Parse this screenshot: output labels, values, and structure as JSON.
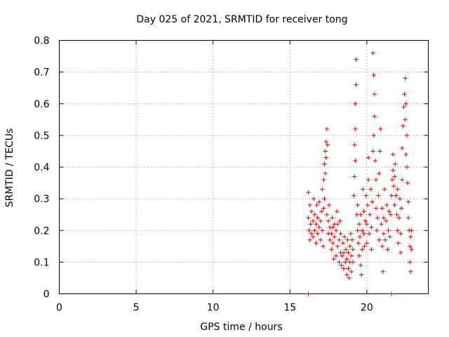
{
  "chart_data": {
    "type": "scatter",
    "title": "Day 025 of 2021, SRMTID for receiver tong",
    "xlabel": "GPS time / hours",
    "ylabel": "SRMTID / TECUs",
    "xlim": [
      0,
      24
    ],
    "ylim": [
      0,
      0.8
    ],
    "xticks": [
      "0",
      "5",
      "10",
      "15",
      "20"
    ],
    "yticks": [
      "0",
      "0.1",
      "0.2",
      "0.3",
      "0.4",
      "0.5",
      "0.6",
      "0.7",
      "0.8"
    ],
    "grid": true,
    "marker": "+",
    "color": "#e00000",
    "series": [
      {
        "name": "SRMTID",
        "points": [
          [
            16.2,
            0.0
          ],
          [
            21.6,
            0.0
          ],
          [
            16.2,
            0.32
          ],
          [
            16.2,
            0.24
          ],
          [
            16.25,
            0.2
          ],
          [
            16.3,
            0.17
          ],
          [
            16.3,
            0.28
          ],
          [
            16.35,
            0.22
          ],
          [
            16.4,
            0.19
          ],
          [
            16.4,
            0.26
          ],
          [
            16.5,
            0.18
          ],
          [
            16.5,
            0.23
          ],
          [
            16.55,
            0.3
          ],
          [
            16.6,
            0.2
          ],
          [
            16.6,
            0.25
          ],
          [
            16.7,
            0.16
          ],
          [
            16.7,
            0.22
          ],
          [
            16.75,
            0.28
          ],
          [
            16.8,
            0.19
          ],
          [
            16.8,
            0.24
          ],
          [
            16.9,
            0.21
          ],
          [
            16.9,
            0.29
          ],
          [
            17.0,
            0.17
          ],
          [
            17.0,
            0.23
          ],
          [
            17.05,
            0.26
          ],
          [
            17.1,
            0.2
          ],
          [
            17.1,
            0.33
          ],
          [
            17.15,
            0.15
          ],
          [
            17.2,
            0.36
          ],
          [
            17.25,
            0.41
          ],
          [
            17.3,
            0.45
          ],
          [
            17.35,
            0.48
          ],
          [
            17.4,
            0.52
          ],
          [
            17.35,
            0.43
          ],
          [
            17.3,
            0.38
          ],
          [
            17.45,
            0.47
          ],
          [
            17.25,
            0.3
          ],
          [
            17.2,
            0.27
          ],
          [
            17.4,
            0.25
          ],
          [
            17.5,
            0.19
          ],
          [
            17.5,
            0.23
          ],
          [
            17.55,
            0.28
          ],
          [
            17.6,
            0.17
          ],
          [
            17.6,
            0.21
          ],
          [
            17.7,
            0.14
          ],
          [
            17.7,
            0.19
          ],
          [
            17.75,
            0.24
          ],
          [
            17.8,
            0.16
          ],
          [
            17.8,
            0.21
          ],
          [
            17.85,
            0.11
          ],
          [
            17.9,
            0.18
          ],
          [
            17.9,
            0.22
          ],
          [
            18.0,
            0.12
          ],
          [
            18.0,
            0.2
          ],
          [
            18.05,
            0.26
          ],
          [
            18.1,
            0.15
          ],
          [
            18.1,
            0.22
          ],
          [
            18.2,
            0.1
          ],
          [
            18.2,
            0.17
          ],
          [
            18.25,
            0.23
          ],
          [
            18.3,
            0.13
          ],
          [
            18.3,
            0.19
          ],
          [
            18.35,
            0.09
          ],
          [
            18.4,
            0.12
          ],
          [
            18.45,
            0.16
          ],
          [
            18.5,
            0.08
          ],
          [
            18.5,
            0.13
          ],
          [
            18.55,
            0.18
          ],
          [
            18.6,
            0.1
          ],
          [
            18.65,
            0.14
          ],
          [
            18.7,
            0.06
          ],
          [
            18.7,
            0.11
          ],
          [
            18.75,
            0.17
          ],
          [
            18.8,
            0.08
          ],
          [
            18.8,
            0.13
          ],
          [
            18.85,
            0.05
          ],
          [
            18.9,
            0.1
          ],
          [
            18.9,
            0.15
          ],
          [
            18.95,
            0.19
          ],
          [
            19.0,
            0.07
          ],
          [
            19.0,
            0.12
          ],
          [
            19.05,
            0.17
          ],
          [
            19.1,
            0.1
          ],
          [
            19.1,
            0.14
          ],
          [
            19.15,
            0.31
          ],
          [
            19.2,
            0.37
          ],
          [
            19.2,
            0.47
          ],
          [
            19.25,
            0.52
          ],
          [
            19.25,
            0.6
          ],
          [
            19.3,
            0.66
          ],
          [
            19.3,
            0.74
          ],
          [
            19.25,
            0.42
          ],
          [
            19.35,
            0.25
          ],
          [
            19.4,
            0.2
          ],
          [
            19.4,
            0.28
          ],
          [
            19.45,
            0.16
          ],
          [
            19.5,
            0.22
          ],
          [
            19.5,
            0.12
          ],
          [
            19.55,
            0.18
          ],
          [
            19.6,
            0.09
          ],
          [
            19.6,
            0.25
          ],
          [
            19.65,
            0.06
          ],
          [
            19.7,
            0.14
          ],
          [
            19.7,
            0.2
          ],
          [
            19.75,
            0.33
          ],
          [
            19.8,
            0.19
          ],
          [
            19.8,
            0.26
          ],
          [
            19.85,
            0.15
          ],
          [
            19.9,
            0.23
          ],
          [
            19.95,
            0.31
          ],
          [
            20.0,
            0.16
          ],
          [
            20.0,
            0.22
          ],
          [
            20.05,
            0.28
          ],
          [
            20.1,
            0.36
          ],
          [
            20.1,
            0.43
          ],
          [
            20.15,
            0.19
          ],
          [
            20.2,
            0.25
          ],
          [
            20.25,
            0.33
          ],
          [
            20.3,
            0.14
          ],
          [
            20.3,
            0.21
          ],
          [
            20.35,
            0.29
          ],
          [
            20.4,
            0.45
          ],
          [
            20.45,
            0.5
          ],
          [
            20.4,
            0.76
          ],
          [
            20.45,
            0.69
          ],
          [
            20.5,
            0.63
          ],
          [
            20.5,
            0.56
          ],
          [
            20.55,
            0.42
          ],
          [
            20.6,
            0.36
          ],
          [
            20.6,
            0.27
          ],
          [
            20.65,
            0.2
          ],
          [
            20.7,
            0.24
          ],
          [
            20.75,
            0.31
          ],
          [
            20.8,
            0.17
          ],
          [
            20.8,
            0.38
          ],
          [
            20.85,
            0.45
          ],
          [
            20.9,
            0.52
          ],
          [
            20.95,
            0.22
          ],
          [
            21.0,
            0.15
          ],
          [
            21.0,
            0.27
          ],
          [
            21.05,
            0.07
          ],
          [
            21.1,
            0.19
          ],
          [
            21.1,
            0.24
          ],
          [
            21.15,
            0.33
          ],
          [
            21.2,
            0.17
          ],
          [
            21.25,
            0.23
          ],
          [
            21.3,
            0.28
          ],
          [
            21.35,
            0.14
          ],
          [
            21.4,
            0.2
          ],
          [
            21.45,
            0.26
          ],
          [
            21.5,
            0.18
          ],
          [
            21.55,
            0.25
          ],
          [
            21.6,
            0.31
          ],
          [
            21.65,
            0.36
          ],
          [
            21.7,
            0.39
          ],
          [
            21.7,
            0.44
          ],
          [
            21.75,
            0.34
          ],
          [
            21.8,
            0.28
          ],
          [
            21.8,
            0.37
          ],
          [
            21.85,
            0.41
          ],
          [
            21.9,
            0.31
          ],
          [
            21.95,
            0.25
          ],
          [
            22.0,
            0.2
          ],
          [
            22.0,
            0.33
          ],
          [
            22.05,
            0.16
          ],
          [
            22.1,
            0.24
          ],
          [
            22.15,
            0.3
          ],
          [
            22.2,
            0.13
          ],
          [
            22.2,
            0.19
          ],
          [
            22.25,
            0.27
          ],
          [
            22.3,
            0.36
          ],
          [
            22.3,
            0.46
          ],
          [
            22.35,
            0.53
          ],
          [
            22.4,
            0.59
          ],
          [
            22.45,
            0.63
          ],
          [
            22.5,
            0.68
          ],
          [
            22.55,
            0.6
          ],
          [
            22.5,
            0.55
          ],
          [
            22.6,
            0.5
          ],
          [
            22.55,
            0.44
          ],
          [
            22.6,
            0.4
          ],
          [
            22.65,
            0.35
          ],
          [
            22.7,
            0.29
          ],
          [
            22.7,
            0.24
          ],
          [
            22.75,
            0.2
          ],
          [
            22.8,
            0.15
          ],
          [
            22.8,
            0.1
          ],
          [
            22.85,
            0.07
          ],
          [
            22.85,
            0.18
          ],
          [
            22.9,
            0.14
          ],
          [
            22.9,
            0.2
          ]
        ]
      }
    ]
  }
}
